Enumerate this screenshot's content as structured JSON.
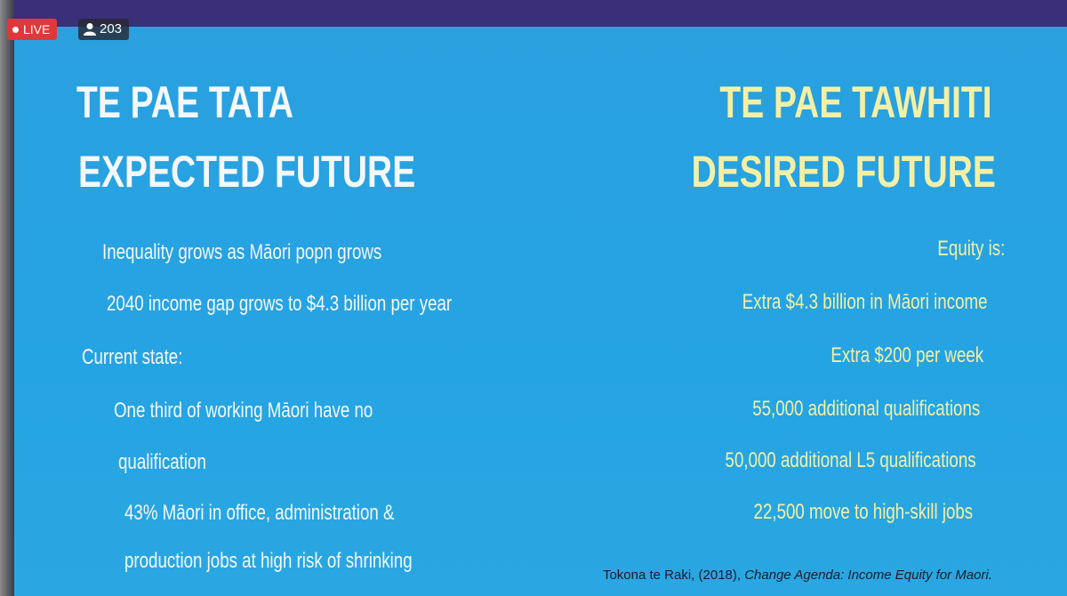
{
  "overlay": {
    "live": "LIVE",
    "viewers": "203"
  },
  "slide": {
    "left": {
      "title": "TE PAE TATA",
      "subtitle": "EXPECTED FUTURE",
      "items": [
        "Inequality grows as Māori popn grows",
        "2040 income gap grows to $4.3 billion per year",
        "Current state:",
        "One third of working Māori have no",
        "qualification",
        "43% Māori in office, administration &",
        "production jobs at high risk of shrinking"
      ]
    },
    "right": {
      "title": "TE PAE TAWHITI",
      "subtitle": "DESIRED FUTURE",
      "items": [
        "Equity is:",
        "Extra $4.3 billion in Māori income",
        "Extra $200 per week",
        "55,000 additional qualifications",
        "50,000 additional L5 qualifications",
        "22,500 move to high-skill jobs"
      ]
    },
    "citation": {
      "text": "Tokona te Raki, (2018), ",
      "title": "Change Agenda: Income Equity for Maori."
    }
  }
}
